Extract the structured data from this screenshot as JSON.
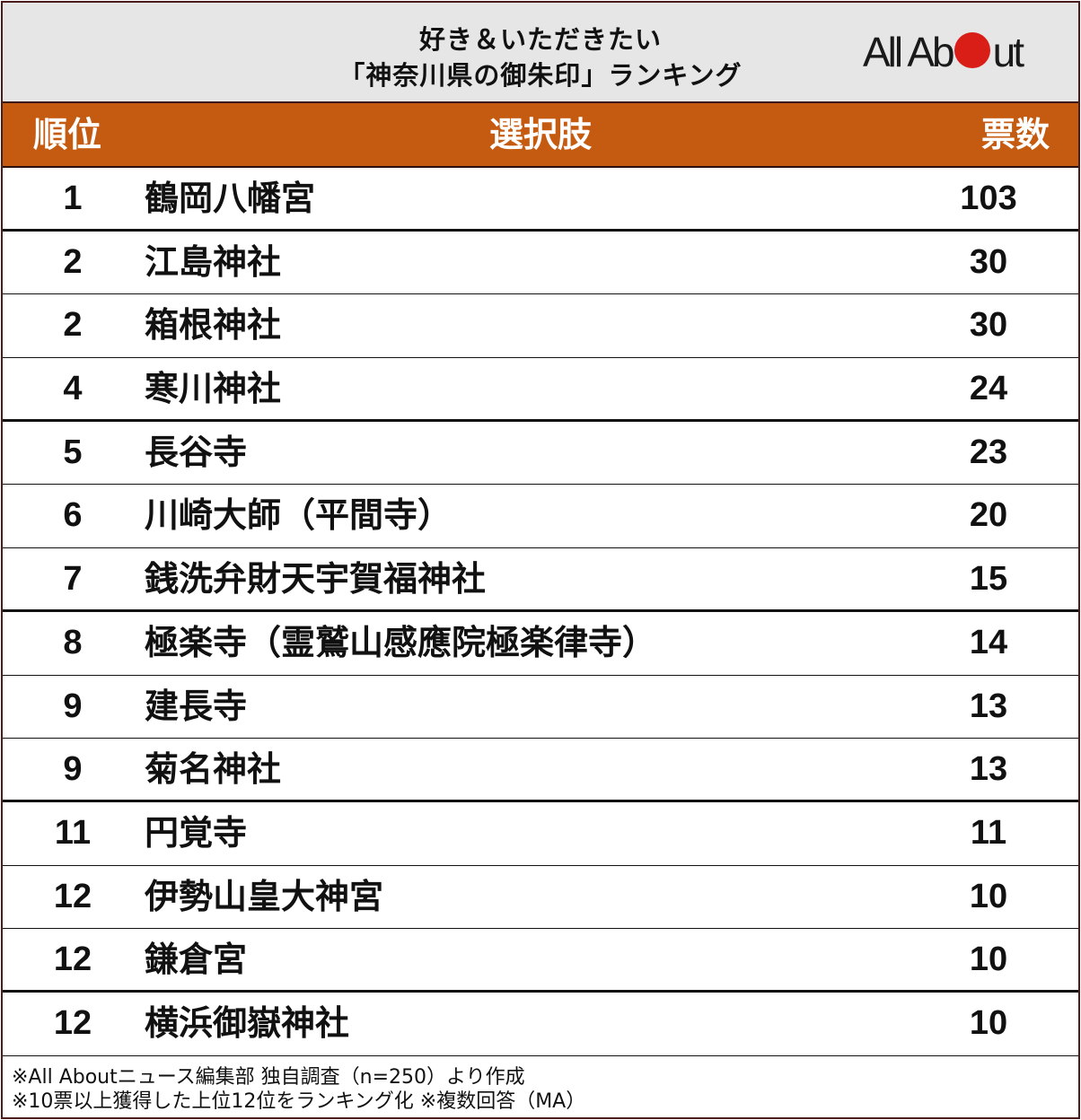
{
  "title": {
    "line1": "好き＆いただきたい",
    "line2": "「神奈川県の御朱印」ランキング"
  },
  "logo": {
    "prefix": "All Ab",
    "suffix": "ut",
    "dot_color": "#d91e18"
  },
  "colors": {
    "header_bg": "#c55a11",
    "title_bg": "#e6e6e6",
    "border": "#4a1c1c"
  },
  "table": {
    "headers": {
      "rank": "順位",
      "choice": "選択肢",
      "votes": "票数"
    },
    "rows": [
      {
        "rank": "1",
        "name": "鶴岡八幡宮",
        "votes": "103"
      },
      {
        "rank": "2",
        "name": "江島神社",
        "votes": "30"
      },
      {
        "rank": "2",
        "name": "箱根神社",
        "votes": "30"
      },
      {
        "rank": "4",
        "name": "寒川神社",
        "votes": "24"
      },
      {
        "rank": "5",
        "name": "長谷寺",
        "votes": "23"
      },
      {
        "rank": "6",
        "name": "川崎大師（平間寺）",
        "votes": "20"
      },
      {
        "rank": "7",
        "name": "銭洗弁財天宇賀福神社",
        "votes": "15"
      },
      {
        "rank": "8",
        "name": "極楽寺（霊鷲山感應院極楽律寺）",
        "votes": "14"
      },
      {
        "rank": "9",
        "name": "建長寺",
        "votes": "13"
      },
      {
        "rank": "9",
        "name": "菊名神社",
        "votes": "13"
      },
      {
        "rank": "11",
        "name": "円覚寺",
        "votes": "11"
      },
      {
        "rank": "12",
        "name": "伊勢山皇大神宮",
        "votes": "10"
      },
      {
        "rank": "12",
        "name": "鎌倉宮",
        "votes": "10"
      },
      {
        "rank": "12",
        "name": "横浜御嶽神社",
        "votes": "10"
      }
    ]
  },
  "footer": {
    "note1": "※All Aboutニュース編集部 独自調査（n=250）より作成",
    "note2": "※10票以上獲得した上位12位をランキング化 ※複数回答（MA）"
  },
  "chart_data": {
    "type": "table",
    "title": "好き＆いただきたい「神奈川県の御朱印」ランキング",
    "columns": [
      "順位",
      "選択肢",
      "票数"
    ],
    "categories": [
      "鶴岡八幡宮",
      "江島神社",
      "箱根神社",
      "寒川神社",
      "長谷寺",
      "川崎大師（平間寺）",
      "銭洗弁財天宇賀福神社",
      "極楽寺（霊鷲山感應院極楽律寺）",
      "建長寺",
      "菊名神社",
      "円覚寺",
      "伊勢山皇大神宮",
      "鎌倉宮",
      "横浜御嶽神社"
    ],
    "ranks": [
      1,
      2,
      2,
      4,
      5,
      6,
      7,
      8,
      9,
      9,
      11,
      12,
      12,
      12
    ],
    "values": [
      103,
      30,
      30,
      24,
      23,
      20,
      15,
      14,
      13,
      13,
      11,
      10,
      10,
      10
    ],
    "notes": [
      "※All Aboutニュース編集部 独自調査（n=250）より作成",
      "※10票以上獲得した上位12位をランキング化 ※複数回答（MA）"
    ]
  }
}
